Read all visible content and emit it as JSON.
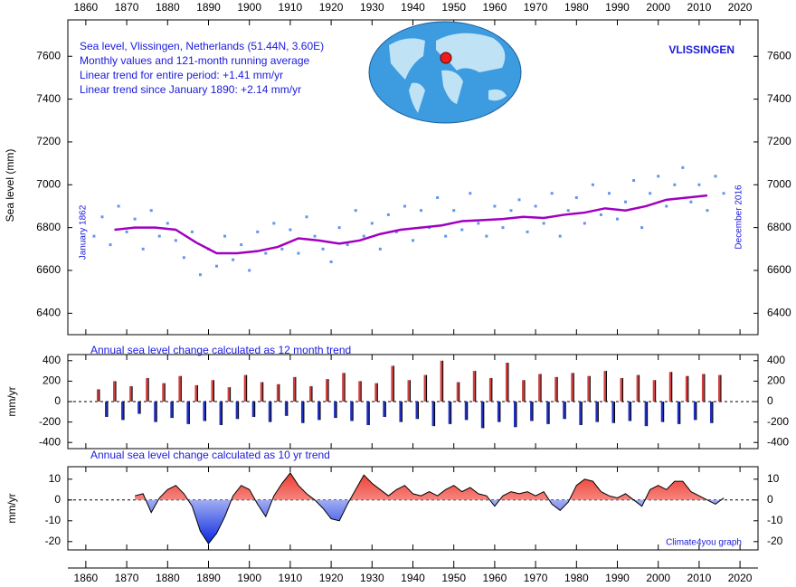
{
  "chart_data": [
    {
      "type": "scatter",
      "title": "VLISSINGEN",
      "annotations": [
        "Sea level, Vlissingen, Netherlands (51.44N, 3.60E)",
        "Monthly values and 121-month running average",
        "Linear trend for entire period: +1.41 mm/yr",
        "Linear trend since January 1890: +2.14 mm/yr"
      ],
      "start_label": "January 1862",
      "end_label": "December 2016",
      "ylabel": "Sea level (mm)",
      "xlim": [
        1855.6,
        2024.4
      ],
      "xticks": [
        1860,
        1870,
        1880,
        1890,
        1900,
        1910,
        1920,
        1930,
        1940,
        1950,
        1960,
        1970,
        1980,
        1990,
        2000,
        2010,
        2020
      ],
      "ylim": [
        6300,
        7770
      ],
      "yticks": [
        6400,
        6600,
        6800,
        7000,
        7200,
        7400,
        7600
      ],
      "series": [
        {
          "name": "Monthly values",
          "color": "#6495ed",
          "x": [
            1862,
            1864,
            1866,
            1868,
            1870,
            1872,
            1874,
            1876,
            1878,
            1880,
            1882,
            1884,
            1886,
            1888,
            1890,
            1892,
            1894,
            1896,
            1898,
            1900,
            1902,
            1904,
            1906,
            1908,
            1910,
            1912,
            1914,
            1916,
            1918,
            1920,
            1922,
            1924,
            1926,
            1928,
            1930,
            1932,
            1934,
            1936,
            1938,
            1940,
            1942,
            1944,
            1946,
            1948,
            1950,
            1952,
            1954,
            1956,
            1958,
            1960,
            1962,
            1964,
            1966,
            1968,
            1970,
            1972,
            1974,
            1976,
            1978,
            1980,
            1982,
            1984,
            1986,
            1988,
            1990,
            1992,
            1994,
            1996,
            1998,
            2000,
            2002,
            2004,
            2006,
            2008,
            2010,
            2012,
            2014,
            2016
          ],
          "values": [
            6760,
            6850,
            6720,
            6900,
            6780,
            6840,
            6700,
            6880,
            6760,
            6820,
            6740,
            6660,
            6780,
            6580,
            6700,
            6620,
            6760,
            6650,
            6720,
            6600,
            6780,
            6680,
            6820,
            6700,
            6790,
            6680,
            6850,
            6760,
            6700,
            6640,
            6800,
            6720,
            6880,
            6760,
            6820,
            6700,
            6860,
            6780,
            6900,
            6740,
            6880,
            6800,
            6940,
            6760,
            6880,
            6790,
            6960,
            6820,
            6760,
            6900,
            6800,
            6880,
            6930,
            6780,
            6900,
            6820,
            6960,
            6760,
            6880,
            6940,
            6820,
            7000,
            6860,
            6960,
            6840,
            6920,
            7020,
            6800,
            6960,
            7040,
            6900,
            7000,
            7080,
            6920,
            7000,
            6880,
            7040,
            6960
          ]
        },
        {
          "name": "121-month running average",
          "color": "#a000c0",
          "x": [
            1867,
            1872,
            1877,
            1882,
            1887,
            1892,
            1897,
            1902,
            1907,
            1912,
            1917,
            1922,
            1927,
            1932,
            1937,
            1942,
            1947,
            1952,
            1957,
            1962,
            1967,
            1972,
            1977,
            1982,
            1987,
            1992,
            1997,
            2002,
            2007,
            2012
          ],
          "values": [
            6790,
            6800,
            6800,
            6790,
            6730,
            6680,
            6680,
            6690,
            6710,
            6750,
            6740,
            6725,
            6740,
            6770,
            6790,
            6800,
            6810,
            6830,
            6835,
            6840,
            6850,
            6845,
            6860,
            6870,
            6890,
            6880,
            6900,
            6930,
            6940,
            6950
          ]
        }
      ]
    },
    {
      "type": "bar",
      "title": "Annual sea level change calculated as 12 month trend",
      "ylabel": "mm/yr",
      "xlim": [
        1855.6,
        2024.4
      ],
      "ylim": [
        -460,
        460
      ],
      "yticks": [
        -400,
        -200,
        0,
        200,
        400
      ],
      "pos_color": "#d04040",
      "neg_color": "#2030c0",
      "x": [
        1863,
        1865,
        1867,
        1869,
        1871,
        1873,
        1875,
        1877,
        1879,
        1881,
        1883,
        1885,
        1887,
        1889,
        1891,
        1893,
        1895,
        1897,
        1899,
        1901,
        1903,
        1905,
        1907,
        1909,
        1911,
        1913,
        1915,
        1917,
        1919,
        1921,
        1923,
        1925,
        1927,
        1929,
        1931,
        1933,
        1935,
        1937,
        1939,
        1941,
        1943,
        1945,
        1947,
        1949,
        1951,
        1953,
        1955,
        1957,
        1959,
        1961,
        1963,
        1965,
        1967,
        1969,
        1971,
        1973,
        1975,
        1977,
        1979,
        1981,
        1983,
        1985,
        1987,
        1989,
        1991,
        1993,
        1995,
        1997,
        1999,
        2001,
        2003,
        2005,
        2007,
        2009,
        2011,
        2013,
        2015
      ],
      "values": [
        120,
        -150,
        200,
        -180,
        150,
        -120,
        230,
        -200,
        180,
        -160,
        250,
        -220,
        160,
        -190,
        210,
        -230,
        140,
        -170,
        260,
        -150,
        190,
        -200,
        170,
        -140,
        240,
        -210,
        150,
        -180,
        220,
        -160,
        280,
        -190,
        200,
        -230,
        180,
        -150,
        350,
        -200,
        210,
        -170,
        260,
        -240,
        400,
        -220,
        190,
        -180,
        300,
        -260,
        230,
        -200,
        380,
        -250,
        210,
        -190,
        270,
        -220,
        240,
        -170,
        280,
        -230,
        250,
        -200,
        300,
        -210,
        230,
        -190,
        260,
        -240,
        210,
        -200,
        290,
        -220,
        250,
        -180,
        270,
        -210,
        260
      ]
    },
    {
      "type": "area",
      "title": "Annual sea level change calculated as 10 yr trend",
      "ylabel": "mm/yr",
      "credit": "Climate4you graph",
      "xlim": [
        1855.6,
        2024.4
      ],
      "xticks": [
        1860,
        1870,
        1880,
        1890,
        1900,
        1910,
        1920,
        1930,
        1940,
        1950,
        1960,
        1970,
        1980,
        1990,
        2000,
        2010,
        2020
      ],
      "ylim": [
        -24,
        16
      ],
      "yticks": [
        -20,
        -10,
        0,
        10
      ],
      "pos_color": "#ee3b30",
      "neg_color": "#0a28e0",
      "x": [
        1872,
        1874,
        1876,
        1878,
        1880,
        1882,
        1884,
        1886,
        1888,
        1890,
        1892,
        1894,
        1896,
        1898,
        1900,
        1902,
        1904,
        1906,
        1908,
        1910,
        1912,
        1914,
        1916,
        1918,
        1920,
        1922,
        1924,
        1926,
        1928,
        1930,
        1932,
        1934,
        1936,
        1938,
        1940,
        1942,
        1944,
        1946,
        1948,
        1950,
        1952,
        1954,
        1956,
        1958,
        1960,
        1962,
        1964,
        1966,
        1968,
        1970,
        1972,
        1974,
        1976,
        1978,
        1980,
        1982,
        1984,
        1986,
        1988,
        1990,
        1992,
        1994,
        1996,
        1998,
        2000,
        2002,
        2004,
        2006,
        2008,
        2010,
        2012,
        2014,
        2016
      ],
      "values": [
        2,
        3,
        -6,
        1,
        5,
        7,
        3,
        -3,
        -15,
        -21,
        -16,
        -8,
        2,
        7,
        5,
        -2,
        -8,
        2,
        8,
        13,
        7,
        3,
        0,
        -4,
        -9,
        -10,
        -2,
        5,
        12,
        8,
        5,
        2,
        5,
        7,
        3,
        2,
        4,
        2,
        5,
        7,
        4,
        6,
        3,
        2,
        -3,
        2,
        4,
        3,
        4,
        2,
        4,
        -2,
        -5,
        -1,
        7,
        10,
        9,
        4,
        2,
        1,
        3,
        0,
        -3,
        5,
        7,
        5,
        9,
        9,
        4,
        2,
        0,
        -2,
        1
      ]
    }
  ]
}
